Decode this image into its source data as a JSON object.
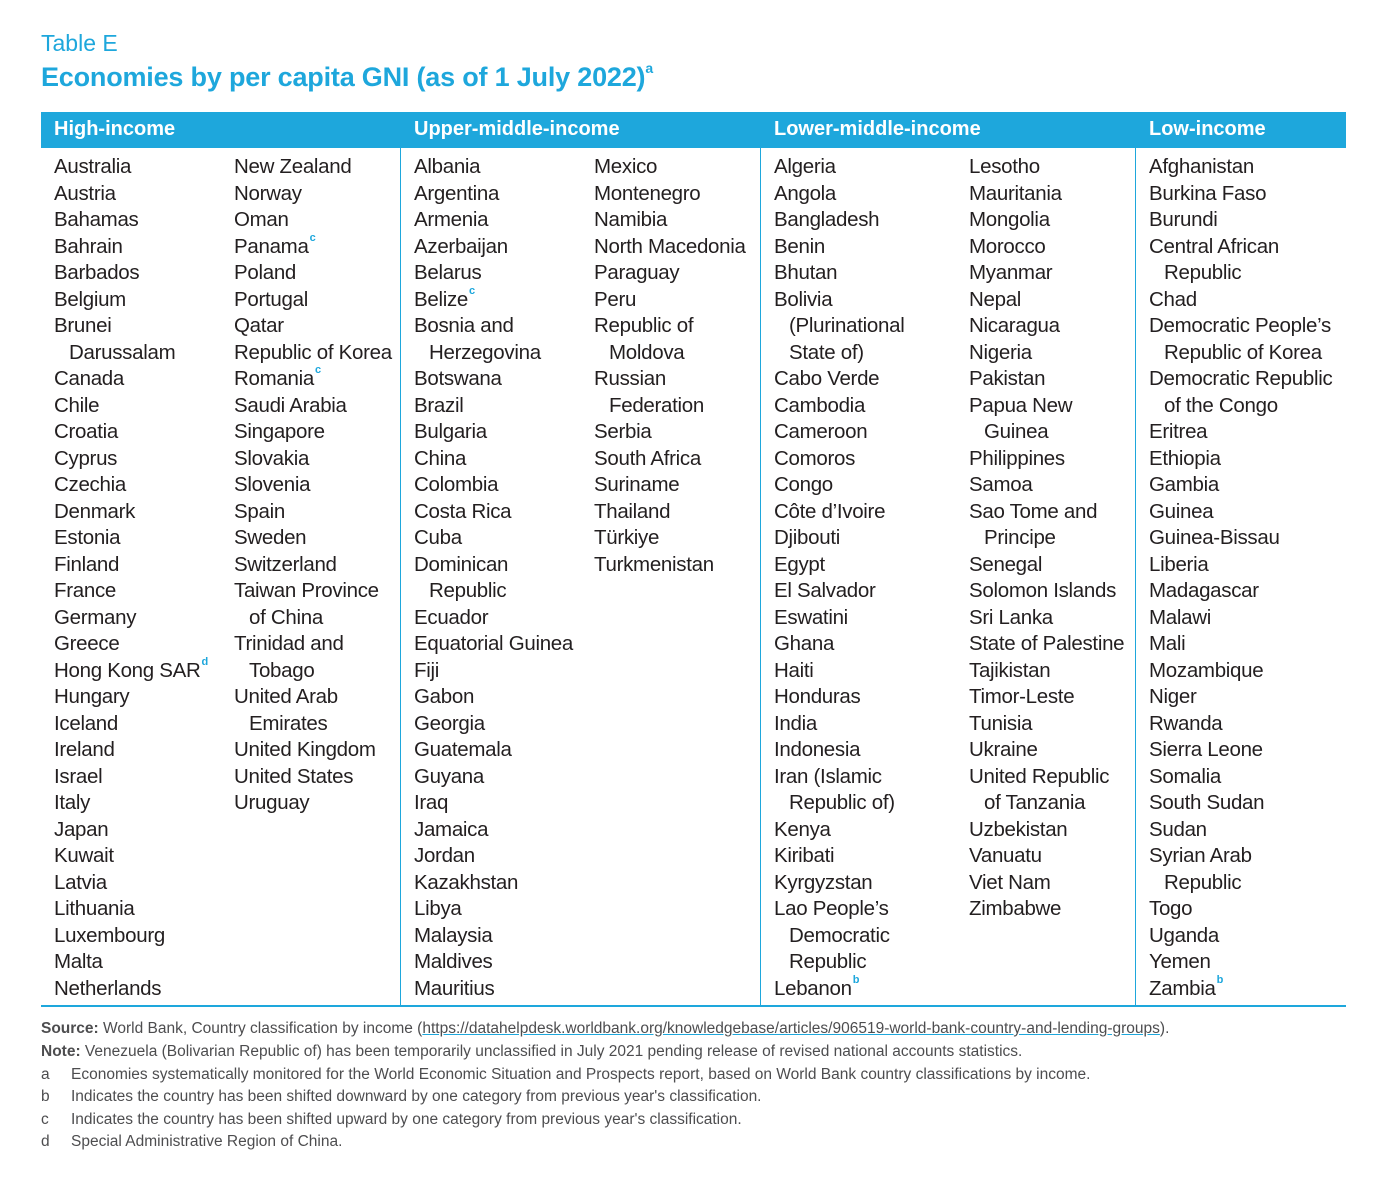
{
  "table_label": "Table E",
  "title": "Economies by per capita GNI (as of 1 July 2022)",
  "title_note": "a",
  "headers": [
    "High-income",
    "Upper-middle-income",
    "Lower-middle-income",
    "Low-income"
  ],
  "columns": [
    [
      {
        "t": "Australia"
      },
      {
        "t": "Austria"
      },
      {
        "t": "Bahamas"
      },
      {
        "t": "Bahrain"
      },
      {
        "t": "Barbados"
      },
      {
        "t": "Belgium"
      },
      {
        "t": "Brunei"
      },
      {
        "t": "Darussalam",
        "cont": true
      },
      {
        "t": "Canada"
      },
      {
        "t": "Chile"
      },
      {
        "t": "Croatia"
      },
      {
        "t": "Cyprus"
      },
      {
        "t": "Czechia"
      },
      {
        "t": "Denmark"
      },
      {
        "t": "Estonia"
      },
      {
        "t": "Finland"
      },
      {
        "t": "France"
      },
      {
        "t": "Germany"
      },
      {
        "t": "Greece"
      },
      {
        "t": "Hong Kong SAR",
        "sup": "d"
      },
      {
        "t": "Hungary"
      },
      {
        "t": "Iceland"
      },
      {
        "t": "Ireland"
      },
      {
        "t": "Israel"
      },
      {
        "t": "Italy"
      },
      {
        "t": "Japan"
      },
      {
        "t": "Kuwait"
      },
      {
        "t": "Latvia"
      },
      {
        "t": "Lithuania"
      },
      {
        "t": "Luxembourg"
      },
      {
        "t": "Malta"
      },
      {
        "t": "Netherlands"
      }
    ],
    [
      {
        "t": "New Zealand"
      },
      {
        "t": "Norway"
      },
      {
        "t": "Oman"
      },
      {
        "t": "Panama",
        "sup": "c"
      },
      {
        "t": "Poland"
      },
      {
        "t": "Portugal"
      },
      {
        "t": "Qatar"
      },
      {
        "t": "Republic of Korea"
      },
      {
        "t": "Romania",
        "sup": "c"
      },
      {
        "t": "Saudi Arabia"
      },
      {
        "t": "Singapore"
      },
      {
        "t": "Slovakia"
      },
      {
        "t": "Slovenia"
      },
      {
        "t": "Spain"
      },
      {
        "t": "Sweden"
      },
      {
        "t": "Switzerland"
      },
      {
        "t": "Taiwan Province"
      },
      {
        "t": "of China",
        "cont": true
      },
      {
        "t": "Trinidad and"
      },
      {
        "t": "Tobago",
        "cont": true
      },
      {
        "t": "United Arab"
      },
      {
        "t": "Emirates",
        "cont": true
      },
      {
        "t": "United Kingdom"
      },
      {
        "t": "United States"
      },
      {
        "t": "Uruguay"
      }
    ],
    [
      {
        "t": "Albania"
      },
      {
        "t": "Argentina"
      },
      {
        "t": "Armenia"
      },
      {
        "t": "Azerbaijan"
      },
      {
        "t": "Belarus"
      },
      {
        "t": "Belize",
        "sup": "c"
      },
      {
        "t": "Bosnia and"
      },
      {
        "t": "Herzegovina",
        "cont": true
      },
      {
        "t": "Botswana"
      },
      {
        "t": "Brazil"
      },
      {
        "t": "Bulgaria"
      },
      {
        "t": "China"
      },
      {
        "t": "Colombia"
      },
      {
        "t": "Costa Rica"
      },
      {
        "t": "Cuba"
      },
      {
        "t": "Dominican"
      },
      {
        "t": "Republic",
        "cont": true
      },
      {
        "t": "Ecuador"
      },
      {
        "t": "Equatorial Guinea"
      },
      {
        "t": "Fiji"
      },
      {
        "t": "Gabon"
      },
      {
        "t": "Georgia"
      },
      {
        "t": "Guatemala"
      },
      {
        "t": "Guyana"
      },
      {
        "t": "Iraq"
      },
      {
        "t": "Jamaica"
      },
      {
        "t": "Jordan"
      },
      {
        "t": "Kazakhstan"
      },
      {
        "t": "Libya"
      },
      {
        "t": "Malaysia"
      },
      {
        "t": "Maldives"
      },
      {
        "t": "Mauritius"
      }
    ],
    [
      {
        "t": "Mexico"
      },
      {
        "t": "Montenegro"
      },
      {
        "t": "Namibia"
      },
      {
        "t": "North Macedonia"
      },
      {
        "t": "Paraguay"
      },
      {
        "t": "Peru"
      },
      {
        "t": "Republic of"
      },
      {
        "t": "Moldova",
        "cont": true
      },
      {
        "t": "Russian"
      },
      {
        "t": "Federation",
        "cont": true
      },
      {
        "t": "Serbia"
      },
      {
        "t": "South Africa"
      },
      {
        "t": "Suriname"
      },
      {
        "t": "Thailand"
      },
      {
        "t": "Türkiye"
      },
      {
        "t": "Turkmenistan"
      }
    ],
    [
      {
        "t": "Algeria"
      },
      {
        "t": "Angola"
      },
      {
        "t": "Bangladesh"
      },
      {
        "t": "Benin"
      },
      {
        "t": "Bhutan"
      },
      {
        "t": "Bolivia"
      },
      {
        "t": "(Plurinational",
        "cont": true
      },
      {
        "t": "State of)",
        "cont": true
      },
      {
        "t": "Cabo Verde"
      },
      {
        "t": "Cambodia"
      },
      {
        "t": "Cameroon"
      },
      {
        "t": "Comoros"
      },
      {
        "t": "Congo"
      },
      {
        "t": "Côte d’Ivoire"
      },
      {
        "t": "Djibouti"
      },
      {
        "t": "Egypt"
      },
      {
        "t": "El Salvador"
      },
      {
        "t": "Eswatini"
      },
      {
        "t": "Ghana"
      },
      {
        "t": "Haiti"
      },
      {
        "t": "Honduras"
      },
      {
        "t": "India"
      },
      {
        "t": "Indonesia"
      },
      {
        "t": "Iran (Islamic"
      },
      {
        "t": "Republic of)",
        "cont": true
      },
      {
        "t": "Kenya"
      },
      {
        "t": "Kiribati"
      },
      {
        "t": "Kyrgyzstan"
      },
      {
        "t": "Lao People’s"
      },
      {
        "t": "Democratic",
        "cont": true
      },
      {
        "t": "Republic",
        "cont": true
      },
      {
        "t": "Lebanon",
        "sup": "b"
      }
    ],
    [
      {
        "t": "Lesotho"
      },
      {
        "t": "Mauritania"
      },
      {
        "t": "Mongolia"
      },
      {
        "t": "Morocco"
      },
      {
        "t": "Myanmar"
      },
      {
        "t": "Nepal"
      },
      {
        "t": "Nicaragua"
      },
      {
        "t": "Nigeria"
      },
      {
        "t": "Pakistan"
      },
      {
        "t": "Papua New"
      },
      {
        "t": "Guinea",
        "cont": true
      },
      {
        "t": "Philippines"
      },
      {
        "t": "Samoa"
      },
      {
        "t": "Sao Tome and"
      },
      {
        "t": "Principe",
        "cont": true
      },
      {
        "t": "Senegal"
      },
      {
        "t": "Solomon Islands"
      },
      {
        "t": "Sri Lanka"
      },
      {
        "t": "State of Palestine"
      },
      {
        "t": "Tajikistan"
      },
      {
        "t": "Timor-Leste"
      },
      {
        "t": "Tunisia"
      },
      {
        "t": "Ukraine"
      },
      {
        "t": "United Republic"
      },
      {
        "t": "of Tanzania",
        "cont": true
      },
      {
        "t": "Uzbekistan"
      },
      {
        "t": "Vanuatu"
      },
      {
        "t": "Viet Nam"
      },
      {
        "t": "Zimbabwe"
      }
    ],
    [
      {
        "t": "Afghanistan"
      },
      {
        "t": "Burkina Faso"
      },
      {
        "t": "Burundi"
      },
      {
        "t": "Central African"
      },
      {
        "t": "Republic",
        "cont": true
      },
      {
        "t": "Chad"
      },
      {
        "t": "Democratic People’s"
      },
      {
        "t": "Republic of Korea",
        "cont": true
      },
      {
        "t": "Democratic Republic"
      },
      {
        "t": "of the Congo",
        "cont": true
      },
      {
        "t": "Eritrea"
      },
      {
        "t": "Ethiopia"
      },
      {
        "t": "Gambia"
      },
      {
        "t": "Guinea"
      },
      {
        "t": "Guinea-Bissau"
      },
      {
        "t": "Liberia"
      },
      {
        "t": "Madagascar"
      },
      {
        "t": "Malawi"
      },
      {
        "t": "Mali"
      },
      {
        "t": "Mozambique"
      },
      {
        "t": "Niger"
      },
      {
        "t": "Rwanda"
      },
      {
        "t": "Sierra Leone"
      },
      {
        "t": "Somalia"
      },
      {
        "t": "South Sudan"
      },
      {
        "t": "Sudan"
      },
      {
        "t": "Syrian Arab"
      },
      {
        "t": "Republic",
        "cont": true
      },
      {
        "t": "Togo"
      },
      {
        "t": "Uganda"
      },
      {
        "t": "Yemen"
      },
      {
        "t": "Zambia",
        "sup": "b"
      }
    ]
  ],
  "footer": {
    "source_label": "Source:",
    "source_text": " World Bank, Country classification by income (",
    "source_url": "https://datahelpdesk.worldbank.org/knowledgebase/articles/906519-world-bank-country-and-lending-groups",
    "source_end": ").",
    "note_label": "Note:",
    "note_text": " Venezuela (Bolivarian Republic of) has been temporarily unclassified in July 2021 pending release of revised national accounts statistics.",
    "notes": [
      {
        "letter": "a",
        "text": "Economies systematically monitored for the World Economic Situation and Prospects report, based on World Bank country classifications by income."
      },
      {
        "letter": "b",
        "text": "Indicates the country has been shifted downward by one category from previous year's classification."
      },
      {
        "letter": "c",
        "text": "Indicates the country has been shifted upward by one category from previous year's classification."
      },
      {
        "letter": "d",
        "text": "Special Administrative Region of China."
      }
    ]
  },
  "colors": {
    "accent": "#1ea7dc",
    "text": "#231f20",
    "footnote": "#4d4d4f"
  }
}
